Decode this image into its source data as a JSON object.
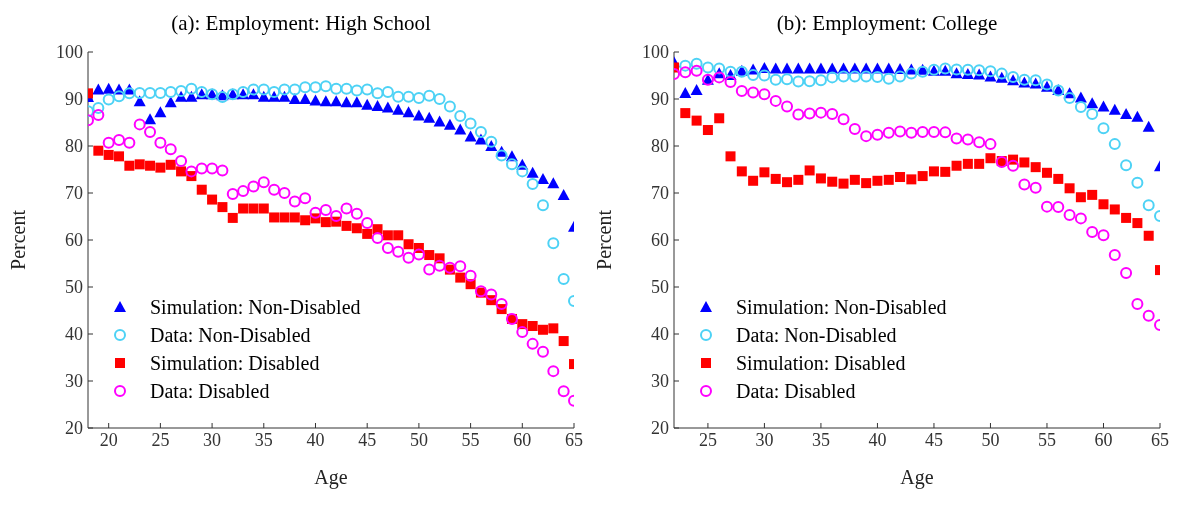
{
  "chart_data": [
    {
      "type": "scatter",
      "title": "(a): Employment: High School",
      "xlabel": "Age",
      "ylabel": "Percent",
      "xlim": [
        18,
        65
      ],
      "xticks": [
        20,
        25,
        30,
        35,
        40,
        45,
        50,
        55,
        60,
        65
      ],
      "ylim": [
        20,
        100
      ],
      "yticks": [
        20,
        30,
        40,
        50,
        60,
        70,
        80,
        90,
        100
      ],
      "grid": false,
      "legend": "bottom left",
      "x": [
        18,
        19,
        20,
        21,
        22,
        23,
        24,
        25,
        26,
        27,
        28,
        29,
        30,
        31,
        32,
        33,
        34,
        35,
        36,
        37,
        38,
        39,
        40,
        41,
        42,
        43,
        44,
        45,
        46,
        47,
        48,
        49,
        50,
        51,
        52,
        53,
        54,
        55,
        56,
        57,
        58,
        59,
        60,
        61,
        62,
        63,
        64,
        65
      ],
      "series": [
        {
          "name": "Simulation: Non-Disabled",
          "color": "#0000ff",
          "marker": "triangle",
          "values": [
            90.4,
            92,
            92.2,
            92,
            92,
            89.5,
            85.7,
            87.2,
            89.3,
            90.5,
            90.5,
            91,
            91,
            90.8,
            91,
            91,
            91,
            90.5,
            90.5,
            90.5,
            90,
            90,
            89.7,
            89.5,
            89.5,
            89.3,
            89.3,
            88.8,
            88.5,
            88.2,
            87.7,
            87.2,
            86.5,
            86,
            85.2,
            84.5,
            83.5,
            82,
            81.4,
            80,
            78.8,
            77.8,
            76,
            74.3,
            73,
            72.1,
            69.6,
            62.8
          ]
        },
        {
          "name": "Data: Non-Disabled",
          "color": "#4dd2f5",
          "marker": "circle",
          "values": [
            87.4,
            88.1,
            89.9,
            90.6,
            91.2,
            91.3,
            91.3,
            91.3,
            91.5,
            91.7,
            92.2,
            91.5,
            91,
            90.4,
            91,
            91.5,
            92,
            92,
            91.5,
            92,
            92,
            92.5,
            92.5,
            92.7,
            92.2,
            92.2,
            91.8,
            92,
            91.2,
            91.5,
            90.5,
            90.5,
            90.2,
            90.7,
            90,
            88.4,
            86.4,
            84.8,
            83,
            80.9,
            78,
            76.1,
            74.6,
            71.9,
            67.4,
            59.3,
            51.7,
            47
          ]
        },
        {
          "name": "Simulation: Disabled",
          "color": "#ff0000",
          "marker": "square",
          "values": [
            91.2,
            79,
            78.1,
            77.8,
            75.8,
            76.1,
            75.8,
            75.4,
            76,
            74.6,
            73.6,
            70.7,
            68.6,
            67,
            64.7,
            66.7,
            66.7,
            66.7,
            64.8,
            64.8,
            64.8,
            64.2,
            64.6,
            63.8,
            63.9,
            63,
            62.5,
            61.3,
            62.3,
            61,
            61,
            59.1,
            58.3,
            56.8,
            56.1,
            53.7,
            52,
            50.6,
            48.8,
            47.2,
            45.3,
            43.2,
            42.1,
            41.7,
            40.9,
            41.2,
            38.5,
            33.6
          ]
        },
        {
          "name": "Data: Disabled",
          "color": "#ff00ff",
          "marker": "circle",
          "values": [
            85.5,
            86.6,
            80.7,
            81.3,
            80.7,
            84.6,
            83,
            80.7,
            79.3,
            76.8,
            74.6,
            75.2,
            75.2,
            74.8,
            69.8,
            70.4,
            71.4,
            72.3,
            70.7,
            70,
            68.2,
            68.9,
            65.8,
            66.4,
            65.1,
            66.7,
            65.6,
            63.6,
            60.4,
            58.3,
            57.5,
            56.2,
            56.9,
            53.7,
            54.5,
            54.1,
            54.4,
            52.4,
            49.1,
            48.4,
            46.4,
            43.2,
            40.4,
            37.9,
            36.2,
            32.1,
            27.8,
            25.8
          ]
        }
      ]
    },
    {
      "type": "scatter",
      "title": "(b): Employment: College",
      "xlabel": "Age",
      "ylabel": "Percent",
      "xlim": [
        22,
        65
      ],
      "xticks": [
        25,
        30,
        35,
        40,
        45,
        50,
        55,
        60,
        65
      ],
      "ylim": [
        20,
        100
      ],
      "yticks": [
        20,
        30,
        40,
        50,
        60,
        70,
        80,
        90,
        100
      ],
      "grid": false,
      "legend": "bottom left",
      "x": [
        22,
        23,
        24,
        25,
        26,
        27,
        28,
        29,
        30,
        31,
        32,
        33,
        34,
        35,
        36,
        37,
        38,
        39,
        40,
        41,
        42,
        43,
        44,
        45,
        46,
        47,
        48,
        49,
        50,
        51,
        52,
        53,
        54,
        55,
        56,
        57,
        58,
        59,
        60,
        61,
        62,
        63,
        64,
        65
      ],
      "series": [
        {
          "name": "Simulation: Non-Disabled",
          "color": "#0000ff",
          "marker": "triangle",
          "values": [
            97.8,
            91.3,
            91.9,
            94.1,
            95.5,
            95.1,
            96,
            96.3,
            96.6,
            96.5,
            96.5,
            96.5,
            96.5,
            96.5,
            96.5,
            96.5,
            96.5,
            96.5,
            96.5,
            96.5,
            96.4,
            96.3,
            96.2,
            96,
            96,
            95.5,
            95.3,
            95.2,
            94.8,
            94.5,
            94,
            93.5,
            93.3,
            92.6,
            91.9,
            91.2,
            90.3,
            89.1,
            88.4,
            87.7,
            86.8,
            86.2,
            84.1,
            75.7
          ]
        },
        {
          "name": "Data: Non-Disabled",
          "color": "#4dd2f5",
          "marker": "circle",
          "values": [
            null,
            97.1,
            97.5,
            96.7,
            96.5,
            95.8,
            95.8,
            95.1,
            95,
            94.1,
            94.2,
            93.7,
            93.8,
            94,
            94.6,
            94.8,
            94.8,
            94.8,
            94.7,
            94.3,
            94.8,
            95.4,
            95.8,
            96.2,
            96.5,
            96.3,
            96.2,
            96.1,
            95.9,
            95.4,
            94.7,
            94.1,
            94,
            93.1,
            91.8,
            90.2,
            88.3,
            86.8,
            83.8,
            80.4,
            75.9,
            72.2,
            67.4,
            65.1
          ]
        },
        {
          "name": "Simulation: Disabled",
          "color": "#ff0000",
          "marker": "square",
          "values": [
            96.7,
            87,
            85.4,
            83.4,
            85.9,
            77.8,
            74.6,
            72.6,
            74.4,
            73,
            72.3,
            72.8,
            74.8,
            73.1,
            72.4,
            72,
            72.8,
            72.1,
            72.6,
            72.8,
            73.4,
            72.9,
            73.6,
            74.6,
            74.5,
            75.8,
            76.2,
            76.2,
            77.4,
            76.8,
            77.1,
            76.5,
            75.5,
            74.3,
            73,
            71,
            69.1,
            69.6,
            67.6,
            66.5,
            64.7,
            63.6,
            60.9,
            53.6
          ]
        },
        {
          "name": "Data: Disabled",
          "color": "#ff00ff",
          "marker": "circle",
          "values": [
            95.3,
            95.7,
            96,
            94.1,
            94.6,
            93.6,
            91.7,
            91.4,
            91,
            89.6,
            88.4,
            86.7,
            86.9,
            87.1,
            86.8,
            85.7,
            83.6,
            82.1,
            82.4,
            82.8,
            83.1,
            82.8,
            83,
            83,
            82.9,
            81.6,
            81.4,
            80.8,
            80.4,
            76.6,
            75.8,
            71.8,
            71.1,
            67.1,
            67,
            65.3,
            64.6,
            61.7,
            61,
            56.8,
            53,
            46.4,
            43.9,
            41.9
          ]
        }
      ]
    }
  ]
}
